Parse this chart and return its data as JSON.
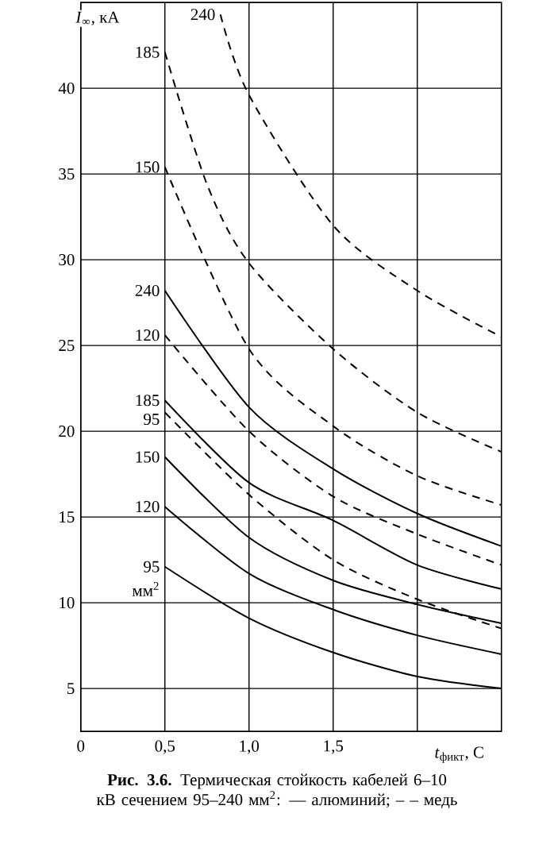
{
  "chart_data": {
    "type": "line",
    "ylabel": "*I*$_{∞}$, кА",
    "xlabel": "*t*$_{фикт}$, С",
    "xlim": [
      0,
      2.5
    ],
    "ylim": [
      2.5,
      45
    ],
    "xticks": [
      {
        "value": 0,
        "label": "0"
      },
      {
        "value": 0.5,
        "label": "0,5"
      },
      {
        "value": 1.0,
        "label": "1,0"
      },
      {
        "value": 1.5,
        "label": "1,5"
      },
      {
        "value": 2.0,
        "label": null
      }
    ],
    "yticks": [
      5,
      10,
      15,
      20,
      25,
      30,
      35,
      40
    ],
    "grid": true,
    "marker": "none",
    "series": [
      {
        "name": "240",
        "color": "#000000",
        "line_style": "solid",
        "x": [
          0.5,
          1.0,
          1.5,
          2.0,
          2.5
        ],
        "values": [
          28.2,
          21.4,
          17.8,
          15.2,
          13.3
        ]
      },
      {
        "name": "185",
        "color": "#000000",
        "line_style": "solid",
        "x": [
          0.5,
          1.0,
          1.5,
          2.0,
          2.5
        ],
        "values": [
          21.8,
          17.0,
          14.8,
          12.2,
          10.8
        ]
      },
      {
        "name": "150",
        "color": "#000000",
        "line_style": "solid",
        "x": [
          0.5,
          1.0,
          1.5,
          2.0,
          2.5
        ],
        "values": [
          18.5,
          13.8,
          11.3,
          9.9,
          8.8
        ]
      },
      {
        "name": "120",
        "color": "#000000",
        "line_style": "solid",
        "x": [
          0.5,
          1.0,
          1.5,
          2.0,
          2.5
        ],
        "values": [
          15.6,
          11.7,
          9.6,
          8.1,
          7.0
        ]
      },
      {
        "name": "95",
        "color": "#000000",
        "line_style": "solid",
        "x": [
          0.5,
          1.0,
          1.5,
          2.0,
          2.5
        ],
        "values": [
          12.1,
          9.1,
          7.1,
          5.7,
          5.0
        ]
      },
      {
        "name": "240",
        "color": "#000000",
        "line_style": "dashed",
        "x": [
          0.83,
          1.0,
          1.5,
          2.0,
          2.5
        ],
        "values": [
          44.3,
          39.6,
          32.0,
          28.2,
          25.5
        ]
      },
      {
        "name": "185",
        "color": "#000000",
        "line_style": "dashed",
        "x": [
          0.5,
          0.75,
          1.0,
          1.5,
          2.0,
          2.5
        ],
        "values": [
          42.1,
          34.4,
          29.8,
          24.8,
          21.1,
          18.8
        ]
      },
      {
        "name": "150",
        "color": "#000000",
        "line_style": "dashed",
        "x": [
          0.5,
          1.0,
          1.5,
          2.0,
          2.5
        ],
        "values": [
          35.4,
          24.8,
          20.3,
          17.4,
          15.7
        ]
      },
      {
        "name": "120",
        "color": "#000000",
        "line_style": "dashed",
        "x": [
          0.5,
          1.0,
          1.5,
          2.0,
          2.5
        ],
        "values": [
          25.6,
          20.0,
          16.2,
          14.0,
          12.2
        ]
      },
      {
        "name": "95",
        "color": "#000000",
        "line_style": "dashed",
        "x": [
          0.5,
          1.0,
          1.5,
          2.0,
          2.5
        ],
        "values": [
          21.1,
          16.3,
          12.5,
          10.2,
          8.5
        ]
      }
    ],
    "annotations": [
      "мм$^{2}$",
      "**Рис. 3.6.** Термическая стойкость кабелей 6–10 кВ сечением 95–240 мм$^{2}$: — алюминий; – – медь"
    ]
  }
}
